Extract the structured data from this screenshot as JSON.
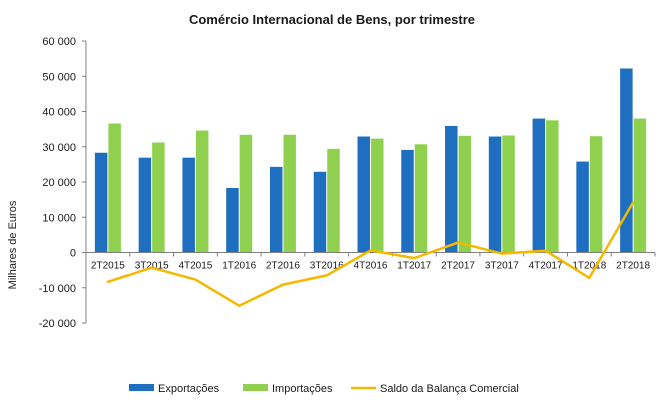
{
  "chart_data": {
    "type": "bar",
    "title": "Comércio Internacional de Bens, por trimestre",
    "ylabel": "Milhares de Euros",
    "ylim": [
      -20000,
      60000
    ],
    "yticks": [
      60000,
      50000,
      40000,
      30000,
      20000,
      10000,
      0,
      -10000,
      -20000
    ],
    "ytick_labels": [
      "60 000",
      "50 000",
      "40 000",
      "30 000",
      "20 000",
      "10 000",
      "0",
      "-10 000",
      "-20 000"
    ],
    "categories": [
      "2T2015",
      "3T2015",
      "4T2015",
      "1T2016",
      "2T2016",
      "3T2016",
      "4T2016",
      "1T2017",
      "2T2017",
      "3T2017",
      "4T2017",
      "1T2018",
      "2T2018"
    ],
    "series": [
      {
        "name": "Exportações",
        "type": "bar",
        "color": "#1f6fc1",
        "values": [
          28300,
          26900,
          26900,
          18300,
          24300,
          22900,
          32900,
          29100,
          35900,
          32900,
          38000,
          25800,
          52200
        ]
      },
      {
        "name": "Importações",
        "type": "bar",
        "color": "#8fd14f",
        "values": [
          36600,
          31200,
          34600,
          33400,
          33400,
          29400,
          32300,
          30700,
          33100,
          33200,
          37500,
          33000,
          38000
        ]
      },
      {
        "name": "Saldo da Balança Comercial",
        "type": "line",
        "color": "#f5b800",
        "values": [
          -8300,
          -4300,
          -7700,
          -15100,
          -9100,
          -6500,
          600,
          -1600,
          2800,
          -300,
          500,
          -7200,
          14200
        ]
      }
    ],
    "grid": false,
    "legend": "bottom"
  }
}
